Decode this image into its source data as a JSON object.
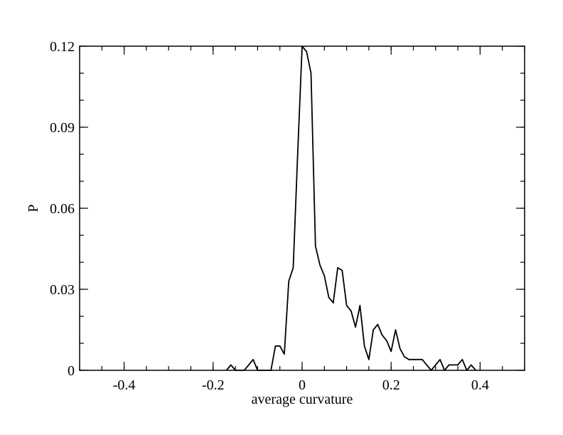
{
  "chart_data": {
    "type": "line",
    "title": "",
    "xlabel": "average curvature",
    "ylabel": "P",
    "xlim": [
      -0.5,
      0.5
    ],
    "ylim": [
      0,
      0.12
    ],
    "x_ticks": [
      -0.4,
      -0.2,
      0,
      0.2,
      0.4
    ],
    "x_tick_labels": [
      "-0.4",
      "-0.2",
      "0",
      "0.2",
      "0.4"
    ],
    "x_minor_step": 0.05,
    "y_ticks": [
      0,
      0.03,
      0.06,
      0.09,
      0.12
    ],
    "y_tick_labels": [
      "0",
      "0.03",
      "0.06",
      "0.09",
      "0.12"
    ],
    "y_minor_step": 0.01,
    "grid": false,
    "legend": "none",
    "line_color": "#000000",
    "series": [
      {
        "x": [
          -0.17,
          -0.16,
          -0.15,
          -0.14,
          -0.13,
          -0.12,
          -0.11,
          -0.1,
          -0.09,
          -0.08,
          -0.07,
          -0.06,
          -0.05,
          -0.04,
          -0.03,
          -0.02,
          -0.01,
          0.0,
          0.01,
          0.02,
          0.03,
          0.04,
          0.05,
          0.06,
          0.07,
          0.08,
          0.09,
          0.1,
          0.11,
          0.12,
          0.13,
          0.14,
          0.15,
          0.16,
          0.17,
          0.18,
          0.19,
          0.2,
          0.21,
          0.22,
          0.23,
          0.24,
          0.25,
          0.26,
          0.27,
          0.28,
          0.29,
          0.3,
          0.31,
          0.32,
          0.33,
          0.34,
          0.35,
          0.36,
          0.37,
          0.38,
          0.39
        ],
        "y": [
          0.0,
          0.002,
          0.0,
          0.0,
          0.0,
          0.002,
          0.004,
          0.0,
          0.0,
          0.0,
          0.0,
          0.009,
          0.009,
          0.006,
          0.033,
          0.038,
          0.08,
          0.12,
          0.118,
          0.11,
          0.046,
          0.039,
          0.035,
          0.027,
          0.025,
          0.038,
          0.037,
          0.024,
          0.022,
          0.016,
          0.024,
          0.009,
          0.004,
          0.015,
          0.017,
          0.013,
          0.011,
          0.007,
          0.015,
          0.008,
          0.005,
          0.004,
          0.004,
          0.004,
          0.004,
          0.002,
          0.0,
          0.002,
          0.004,
          0.0,
          0.002,
          0.002,
          0.002,
          0.004,
          0.0,
          0.002,
          0.0
        ]
      }
    ]
  }
}
